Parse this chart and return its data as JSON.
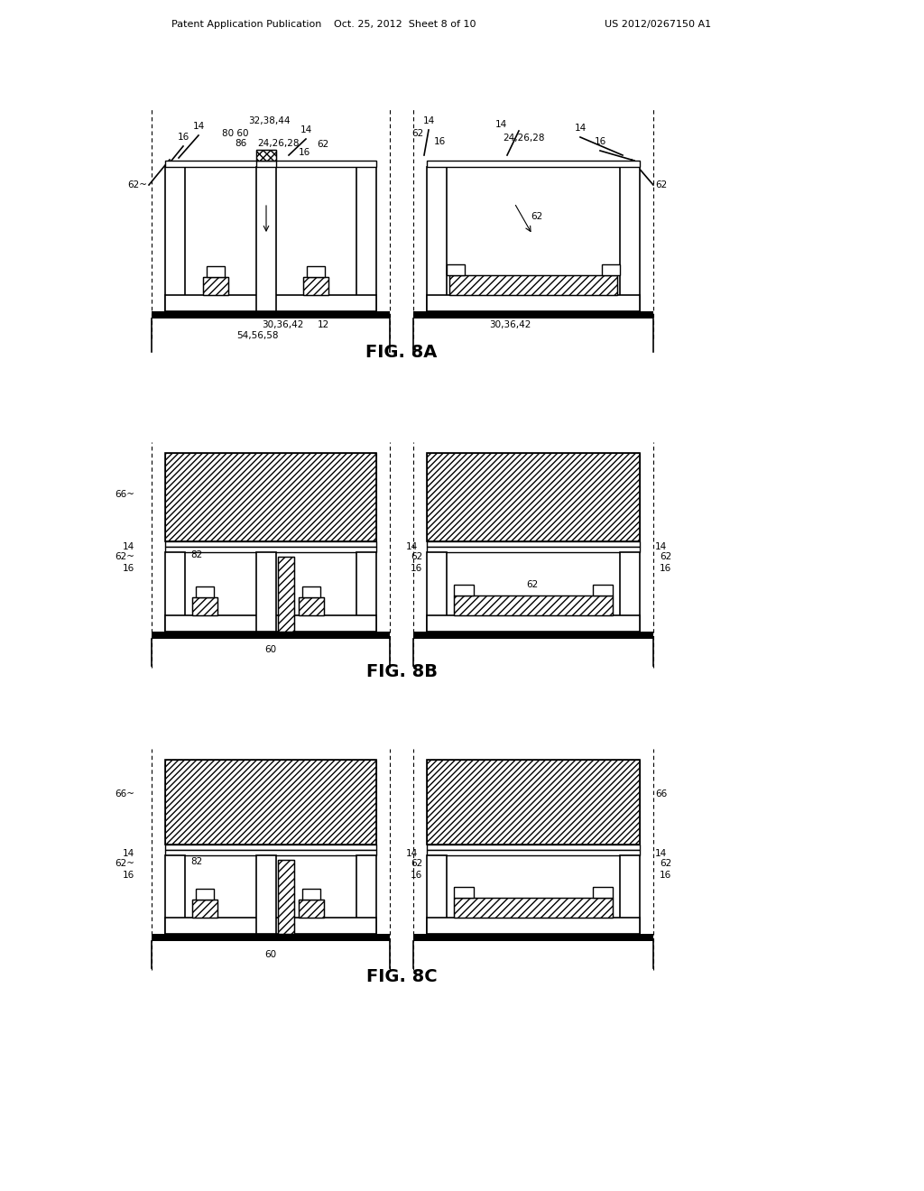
{
  "header_left": "Patent Application Publication",
  "header_mid": "Oct. 25, 2012  Sheet 8 of 10",
  "header_right": "US 2012/0267150 A1",
  "bg_color": "#ffffff"
}
